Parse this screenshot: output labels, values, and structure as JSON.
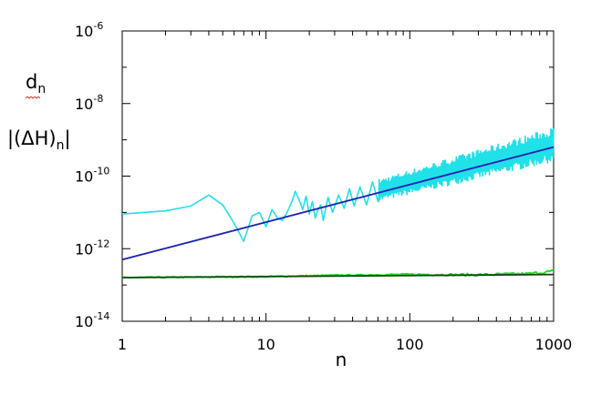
{
  "chart_data": {
    "type": "line",
    "x_scale": "log",
    "y_scale": "log",
    "xlim": [
      1,
      1000
    ],
    "ylim": [
      1e-14,
      1e-06
    ],
    "xlabel": "n",
    "ylabels": [
      {
        "main": "d",
        "sub": "n"
      },
      {
        "main": "|(ΔH)",
        "sub": "n",
        "tail": "|"
      }
    ],
    "x_ticks": [
      {
        "value": 1,
        "label": "1"
      },
      {
        "value": 10,
        "label": "10"
      },
      {
        "value": 100,
        "label": "100"
      },
      {
        "value": 1000,
        "label": "1000"
      }
    ],
    "y_ticks": [
      {
        "value": 1e-06,
        "base": "10",
        "exp": "-6"
      },
      {
        "value": 1e-08,
        "base": "10",
        "exp": "-8"
      },
      {
        "value": 1e-10,
        "base": "10",
        "exp": "-10"
      },
      {
        "value": 1e-12,
        "base": "10",
        "exp": "-12"
      },
      {
        "value": 1e-14,
        "base": "10",
        "exp": "-14"
      }
    ],
    "grid": false,
    "legend": "none",
    "series": [
      {
        "color": "#22e0e8",
        "style": "oscillating",
        "points": [
          [
            1,
            9e-12
          ],
          [
            2,
            1.1e-11
          ],
          [
            3,
            1.5e-11
          ],
          [
            4,
            3e-11
          ],
          [
            5,
            1.6e-11
          ],
          [
            6,
            5e-12
          ],
          [
            7,
            1.6e-12
          ],
          [
            8,
            8e-12
          ],
          [
            9,
            1e-11
          ],
          [
            10,
            4e-12
          ],
          [
            11,
            1.2e-11
          ],
          [
            12,
            7e-12
          ],
          [
            13,
            6e-12
          ],
          [
            14,
            1e-11
          ],
          [
            15,
            1.8e-11
          ],
          [
            16,
            3.8e-11
          ],
          [
            17,
            2.2e-11
          ],
          [
            18,
            1.2e-11
          ],
          [
            19,
            2.8e-11
          ],
          [
            20,
            9e-12
          ],
          [
            21,
            2e-11
          ],
          [
            22,
            7e-12
          ],
          [
            23,
            1.2e-11
          ],
          [
            24,
            1.6e-11
          ],
          [
            25,
            6e-12
          ],
          [
            27,
            2.6e-11
          ],
          [
            29,
            1e-11
          ],
          [
            32,
            3e-11
          ],
          [
            35,
            1.3e-11
          ],
          [
            38,
            4.5e-11
          ],
          [
            41,
            1.5e-11
          ],
          [
            45,
            5e-11
          ],
          [
            50,
            1.6e-11
          ],
          [
            55,
            7e-11
          ],
          [
            60,
            2e-11
          ]
        ],
        "envelope": {
          "x_from": 60,
          "x_to": 1000,
          "upper_from": 8e-11,
          "upper_to": 2.2e-09,
          "lower_from": 2e-11,
          "lower_to": 2.5e-10
        }
      },
      {
        "color": "#1a22b0",
        "style": "line",
        "points": [
          [
            1,
            5e-13
          ],
          [
            1000,
            6.3e-10
          ]
        ]
      },
      {
        "color": "#22dd22",
        "style": "noisy",
        "points": [
          [
            1,
            1.6e-13
          ],
          [
            10,
            1.7e-13
          ],
          [
            30,
            1.85e-13
          ],
          [
            100,
            1.95e-13
          ],
          [
            300,
            1.9e-13
          ],
          [
            700,
            2.05e-13
          ],
          [
            1000,
            2.4e-13
          ]
        ]
      },
      {
        "color": "#0a4a0a",
        "style": "line",
        "points": [
          [
            1,
            1.6e-13
          ],
          [
            1000,
            1.95e-13
          ]
        ]
      }
    ]
  }
}
